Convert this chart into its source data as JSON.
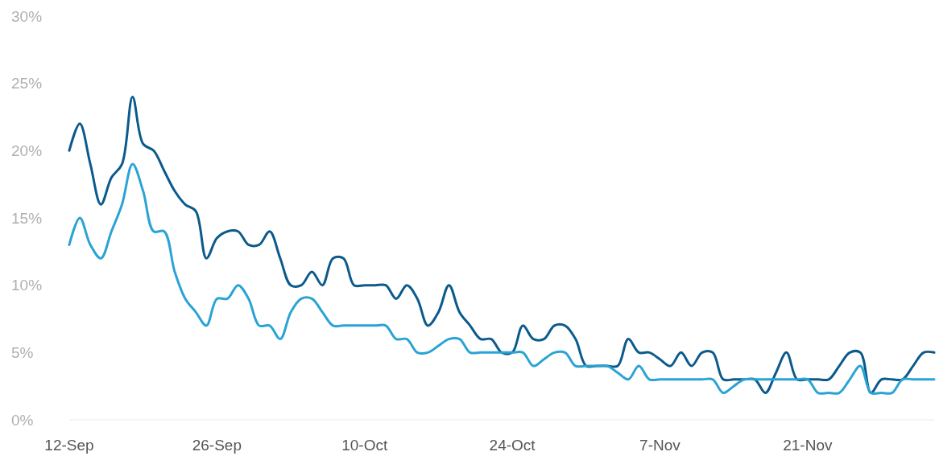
{
  "chart_data": {
    "type": "line",
    "x": [
      "--09-12",
      "--09-13",
      "--09-14",
      "--09-15",
      "--09-16",
      "--09-17",
      "--09-18",
      "--09-19",
      "--09-20",
      "--09-21",
      "--09-22",
      "--09-23",
      "--09-24",
      "--09-25",
      "--09-26",
      "--09-27",
      "--09-28",
      "--09-29",
      "--09-30",
      "--10-01",
      "--10-02",
      "--10-03",
      "--10-04",
      "--10-05",
      "--10-06",
      "--10-07",
      "--10-08",
      "--10-09",
      "--10-10",
      "--10-11",
      "--10-12",
      "--10-13",
      "--10-14",
      "--10-15",
      "--10-16",
      "--10-17",
      "--10-18",
      "--10-19",
      "--10-20",
      "--10-21",
      "--10-22",
      "--10-23",
      "--10-24",
      "--10-25",
      "--10-26",
      "--10-27",
      "--10-28",
      "--10-29",
      "--10-30",
      "--10-31",
      "--11-01",
      "--11-02",
      "--11-03",
      "--11-04",
      "--11-05",
      "--11-06",
      "--11-07",
      "--11-08",
      "--11-09",
      "--11-10",
      "--11-11",
      "--11-12",
      "--11-13",
      "--11-14",
      "--11-15",
      "--11-16",
      "--11-17",
      "--11-18",
      "--11-19",
      "--11-20",
      "--11-21",
      "--11-22",
      "--11-23",
      "--11-24",
      "--11-25",
      "--11-26",
      "--11-27",
      "--11-28",
      "--11-29",
      "--11-30",
      "--12-01",
      "--12-02",
      "--12-03"
    ],
    "series": [
      {
        "color": "#0b5a8c",
        "values": [
          20,
          22,
          19,
          16,
          18,
          19,
          24,
          20.5,
          20,
          18.5,
          17,
          16,
          15.5,
          12,
          13.5,
          14,
          14,
          13,
          13,
          14,
          12,
          10,
          10,
          11,
          10,
          12,
          12,
          10,
          10,
          10,
          10,
          9,
          10,
          9,
          7,
          8,
          10,
          8,
          7,
          6,
          6,
          5,
          5,
          7,
          6,
          6,
          7,
          7,
          6,
          4,
          4,
          4,
          4,
          6,
          5,
          5,
          4.5,
          4,
          5,
          4,
          5,
          5,
          3,
          3,
          3,
          3,
          2,
          3.5,
          5,
          3,
          3,
          3,
          3,
          4,
          5,
          5,
          2,
          3,
          3,
          3,
          4,
          5,
          5
        ]
      },
      {
        "color": "#2aa3d5",
        "values": [
          13,
          15,
          13,
          12,
          14,
          16,
          19,
          17,
          14,
          14,
          11,
          9,
          8,
          7,
          9,
          9,
          10,
          9,
          7,
          7,
          6,
          8,
          9,
          9,
          8,
          7,
          7,
          7,
          7,
          7,
          7,
          6,
          6,
          5,
          5,
          5.5,
          6,
          6,
          5,
          5,
          5,
          5,
          5,
          5,
          4,
          4.5,
          5,
          5,
          4,
          4,
          4,
          4,
          3.5,
          3,
          4,
          3,
          3,
          3,
          3,
          3,
          3,
          3,
          2,
          2.5,
          3,
          3,
          3,
          3,
          3,
          3,
          3,
          2,
          2,
          2,
          3,
          4,
          2,
          2,
          2,
          3,
          3,
          3,
          3
        ]
      }
    ],
    "xlim": [
      "--09-12",
      "--12-03"
    ],
    "xticks": [
      {
        "value": "--09-12",
        "label": "12-Sep"
      },
      {
        "value": "--09-26",
        "label": "26-Sep"
      },
      {
        "value": "--10-10",
        "label": "10-Oct"
      },
      {
        "value": "--10-24",
        "label": "24-Oct"
      },
      {
        "value": "--11-07",
        "label": "7-Nov"
      },
      {
        "value": "--11-21",
        "label": "21-Nov"
      }
    ],
    "ylim": [
      0,
      30
    ],
    "yticks": [
      {
        "value": 0,
        "label": "0%"
      },
      {
        "value": 5,
        "label": "5%"
      },
      {
        "value": 10,
        "label": "10%"
      },
      {
        "value": 15,
        "label": "15%"
      },
      {
        "value": 20,
        "label": "20%"
      },
      {
        "value": 25,
        "label": "25%"
      },
      {
        "value": 30,
        "label": "30%"
      }
    ]
  }
}
